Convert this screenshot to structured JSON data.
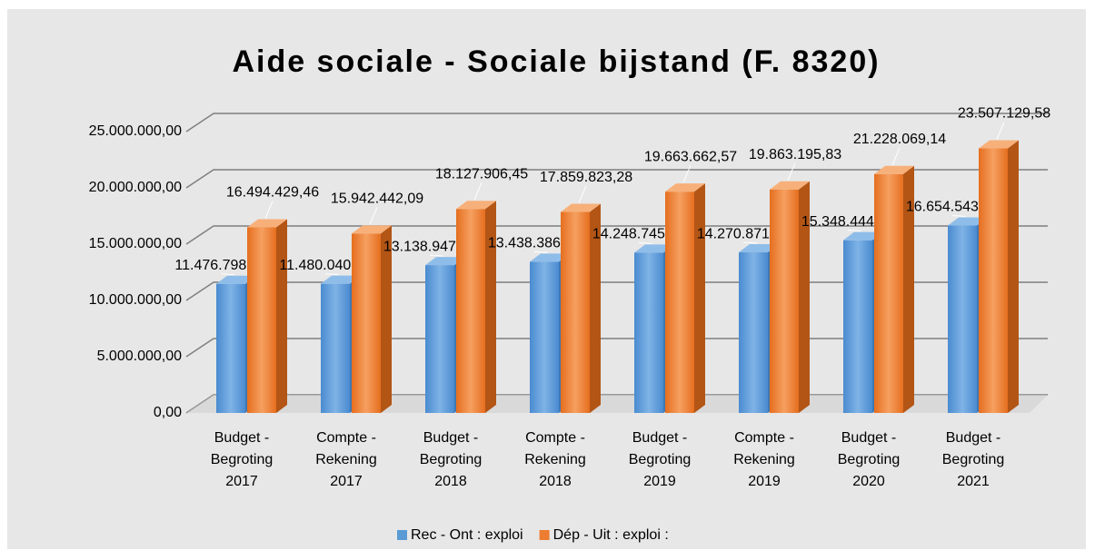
{
  "chart_data": {
    "type": "bar3d",
    "title": "Aide sociale - Sociale bijstand (F. 8320)",
    "categories": [
      "Budget - Begroting 2017",
      "Compte - Rekening 2017",
      "Budget - Begroting 2018",
      "Compte - Rekening 2018",
      "Budget - Begroting 2019",
      "Compte - Rekening 2019",
      "Budget - Begroting 2020",
      "Budget - Begroting 2021"
    ],
    "series": [
      {
        "name": "Rec - Ont : exploi",
        "color": "#5b9bd5",
        "values": [
          11476798.89,
          11480040.55,
          13138947.28,
          13438386.12,
          14248745.8,
          14270871.23,
          15348444.7,
          16654543.82
        ],
        "value_labels": [
          "11.476.798,89",
          "11.480.040,55",
          "13.138.947,28",
          "13.438.386,12",
          "14.248.745,80",
          "14.270.871,23",
          "15.348.444,70",
          "16.654.543,82"
        ]
      },
      {
        "name": "Dép - Uit : exploi :",
        "color": "#ed7d31",
        "values": [
          16494429.46,
          15942442.09,
          18127906.45,
          17859823.28,
          19663662.57,
          19863195.83,
          21228069.14,
          23507129.58
        ],
        "value_labels": [
          "16.494.429,46",
          "15.942.442,09",
          "18.127.906,45",
          "17.859.823,28",
          "19.663.662,57",
          "19.863.195,83",
          "21.228.069,14",
          "23.507.129,58"
        ]
      }
    ],
    "ylim": [
      0,
      25000000
    ],
    "yticks": [
      {
        "value": 0,
        "label": "0,00"
      },
      {
        "value": 5000000,
        "label": "5.000.000,00"
      },
      {
        "value": 10000000,
        "label": "10.000.000,00"
      },
      {
        "value": 15000000,
        "label": "15.000.000,00"
      },
      {
        "value": 20000000,
        "label": "20.000.000,00"
      },
      {
        "value": 25000000,
        "label": "25.000.000,00"
      }
    ],
    "grid": true,
    "legend": "bottom"
  }
}
